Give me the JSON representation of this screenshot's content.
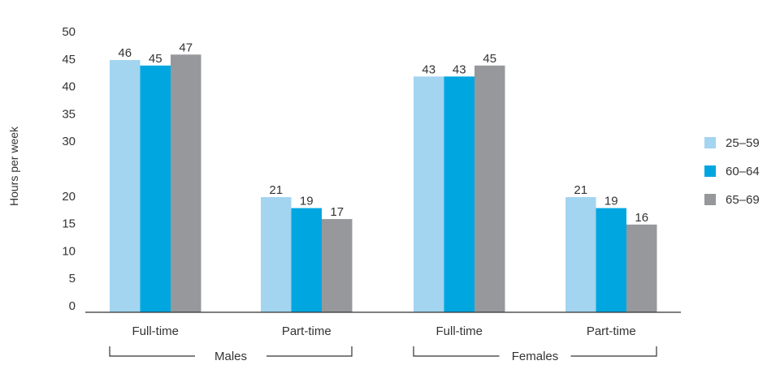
{
  "chart_data": {
    "type": "bar",
    "title": "",
    "xlabel": "",
    "ylabel": "Hours per week",
    "ylim": [
      0,
      50
    ],
    "yticks": [
      0,
      5,
      10,
      15,
      20,
      30,
      35,
      40,
      45,
      50
    ],
    "grid": false,
    "legend_position": "right",
    "categories": [
      "Full-time",
      "Part-time",
      "Full-time",
      "Part-time"
    ],
    "groups": [
      {
        "label": "Males",
        "category_indices": [
          0,
          1
        ]
      },
      {
        "label": "Females",
        "category_indices": [
          2,
          3
        ]
      }
    ],
    "series": [
      {
        "name": "25–59",
        "color": "#a3d4f0",
        "values": [
          46,
          21,
          43,
          21
        ]
      },
      {
        "name": "60–64",
        "color": "#00a6e0",
        "values": [
          45,
          19,
          43,
          19
        ]
      },
      {
        "name": "65–69",
        "color": "#97989b",
        "values": [
          47,
          17,
          45,
          16
        ]
      }
    ]
  }
}
